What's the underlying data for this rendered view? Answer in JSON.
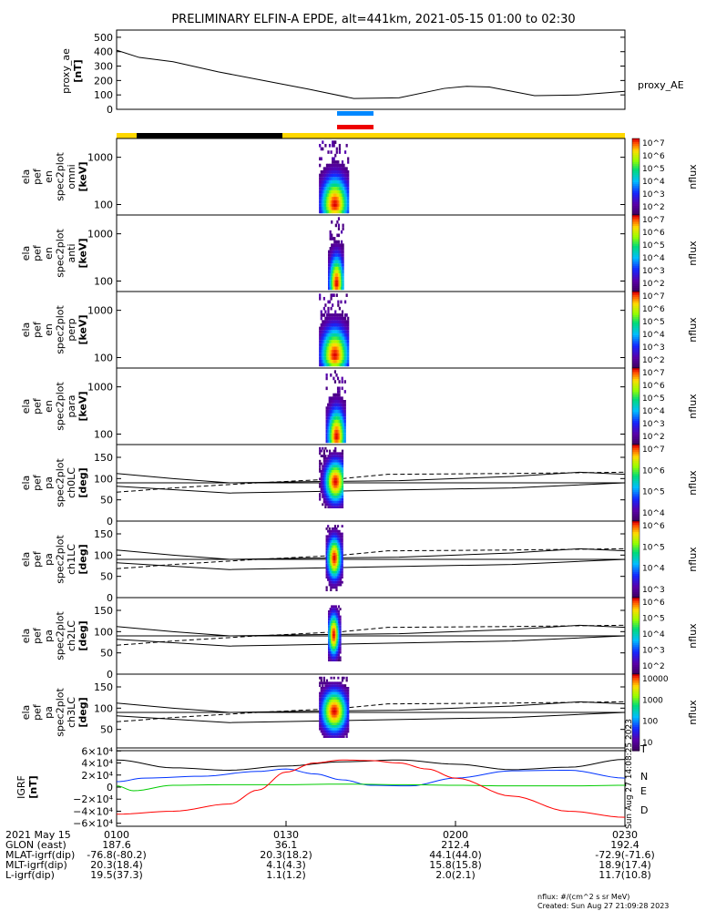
{
  "title": "PRELIMINARY ELFIN-A EPDE, alt=441km, 2021-05-15 01:00 to 02:30",
  "chart_data": [
    {
      "type": "line",
      "id": "proxy_ae",
      "ylabel": [
        "proxy_ae",
        "[nT]"
      ],
      "legend": "proxy_AE",
      "ylim": [
        0,
        550
      ],
      "yticks": [
        "500",
        "400",
        "300",
        "200",
        "100",
        "0"
      ],
      "ytick_values": [
        500,
        400,
        300,
        200,
        100,
        0
      ],
      "x_minutes": [
        0,
        4,
        10,
        18,
        26,
        34,
        42,
        50,
        58,
        62,
        66,
        74,
        82,
        90
      ],
      "values": [
        410,
        360,
        330,
        260,
        200,
        140,
        75,
        80,
        145,
        160,
        155,
        95,
        100,
        125
      ]
    },
    {
      "type": "heatmap",
      "id": "omni",
      "ylabel": [
        "ela",
        "pef",
        "en",
        "spec2plot",
        "omni",
        "[keV]"
      ],
      "yticks": [
        "1000",
        "100"
      ],
      "ytick_values": [
        1000,
        100
      ],
      "ylim_log": [
        60,
        2500
      ],
      "cbar_label": "nflux",
      "cbar_ticks": [
        "10^7",
        "10^6",
        "10^5",
        "10^4",
        "10^3",
        "10^2"
      ],
      "signal": {
        "start_min": 36,
        "end_min": 41,
        "peak_min": 38.7,
        "peak_energy_keV": 90,
        "burst_max_energy_keV": 2000
      }
    },
    {
      "type": "heatmap",
      "id": "anti",
      "ylabel": [
        "ela",
        "pef",
        "en",
        "spec2plot",
        "anti",
        "[keV]"
      ],
      "yticks": [
        "1000",
        "100"
      ],
      "ytick_values": [
        1000,
        100
      ],
      "ylim_log": [
        60,
        2500
      ],
      "cbar_label": "nflux",
      "cbar_ticks": [
        "10^7",
        "10^6",
        "10^5",
        "10^4",
        "10^3",
        "10^2"
      ],
      "signal": {
        "start_min": 37.6,
        "end_min": 40.3,
        "peak_min": 39,
        "peak_energy_keV": 80,
        "burst_max_energy_keV": 2000
      }
    },
    {
      "type": "heatmap",
      "id": "perp",
      "ylabel": [
        "ela",
        "pef",
        "en",
        "spec2plot",
        "perp",
        "[keV]"
      ],
      "yticks": [
        "1000",
        "100"
      ],
      "ytick_values": [
        1000,
        100
      ],
      "ylim_log": [
        60,
        2500
      ],
      "cbar_label": "nflux",
      "cbar_ticks": [
        "10^7",
        "10^6",
        "10^5",
        "10^4",
        "10^3",
        "10^2"
      ],
      "signal": {
        "start_min": 36,
        "end_min": 41,
        "peak_min": 38.7,
        "peak_energy_keV": 100,
        "burst_max_energy_keV": 2000
      }
    },
    {
      "type": "heatmap",
      "id": "para",
      "ylabel": [
        "ela",
        "pef",
        "en",
        "spec2plot",
        "para",
        "[keV]"
      ],
      "yticks": [
        "1000",
        "100"
      ],
      "ytick_values": [
        1000,
        100
      ],
      "ylim_log": [
        60,
        2500
      ],
      "cbar_label": "nflux",
      "cbar_ticks": [
        "10^7",
        "10^6",
        "10^5",
        "10^4",
        "10^3",
        "10^2"
      ],
      "signal": {
        "start_min": 37.2,
        "end_min": 40.5,
        "peak_min": 39,
        "peak_energy_keV": 80,
        "burst_max_energy_keV": 2000
      }
    },
    {
      "type": "heatmap",
      "id": "ch0LC",
      "ylabel": [
        "ela",
        "pef",
        "pa",
        "spec2plot",
        "ch0LC",
        "[deg]"
      ],
      "yticks": [
        "150",
        "100",
        "50",
        "0"
      ],
      "ytick_values": [
        150,
        100,
        50,
        0
      ],
      "ylim": [
        0,
        180
      ],
      "cbar_label": "nflux",
      "cbar_ticks": [
        "10^7",
        "10^6",
        "10^5",
        "10^4"
      ],
      "signal": {
        "start_min": 36,
        "end_min": 40.2,
        "peak_min": 38.8,
        "pa_range": [
          30,
          170
        ]
      }
    },
    {
      "type": "heatmap",
      "id": "ch1LC",
      "ylabel": [
        "ela",
        "pef",
        "pa",
        "spec2plot",
        "ch1LC",
        "[deg]"
      ],
      "yticks": [
        "150",
        "100",
        "50",
        "0"
      ],
      "ytick_values": [
        150,
        100,
        50,
        0
      ],
      "ylim": [
        0,
        180
      ],
      "cbar_label": "nflux",
      "cbar_ticks": [
        "10^6",
        "10^5",
        "10^4",
        "10^3"
      ],
      "signal": {
        "start_min": 37.2,
        "end_min": 40,
        "peak_min": 38.6,
        "pa_range": [
          15,
          170
        ]
      }
    },
    {
      "type": "heatmap",
      "id": "ch2LC",
      "ylabel": [
        "ela",
        "pef",
        "pa",
        "spec2plot",
        "ch2LC",
        "[deg]"
      ],
      "yticks": [
        "150",
        "100",
        "50",
        "0"
      ],
      "ytick_values": [
        150,
        100,
        50,
        0
      ],
      "ylim": [
        0,
        180
      ],
      "cbar_label": "nflux",
      "cbar_ticks": [
        "10^6",
        "10^5",
        "10^4",
        "10^3",
        "10^2"
      ],
      "signal": {
        "start_min": 37.6,
        "end_min": 39.8,
        "peak_min": 38.5,
        "pa_range": [
          30,
          160
        ]
      }
    },
    {
      "type": "heatmap",
      "id": "ch3LC",
      "ylabel": [
        "ela",
        "pef",
        "pa",
        "spec2plot",
        "ch3LC",
        "[deg]"
      ],
      "yticks": [
        "150",
        "100",
        "50"
      ],
      "ytick_values": [
        150,
        100,
        50
      ],
      "ylim": [
        0,
        180
      ],
      "cbar_label": "nflux",
      "cbar_ticks": [
        "10000",
        "1000",
        "100",
        "10"
      ],
      "signal": {
        "start_min": 36,
        "end_min": 41,
        "peak_min": 38.6,
        "pa_range": [
          30,
          170
        ]
      }
    },
    {
      "type": "line",
      "id": "igrf",
      "ylabel": [
        "IGRF",
        "[nT]"
      ],
      "ylim": [
        -65000,
        65000
      ],
      "yticks": [
        "6×10⁴",
        "4×10⁴",
        "2×10⁴",
        "0",
        "−2×10⁴",
        "−4×10⁴",
        "−6×10⁴"
      ],
      "ytick_values": [
        60000,
        40000,
        20000,
        0,
        -20000,
        -40000,
        -60000
      ],
      "series": [
        {
          "name": "T",
          "color": "#000000",
          "x_minutes": [
            0,
            10,
            20,
            30,
            40,
            50,
            60,
            70,
            80,
            90
          ],
          "values": [
            45000,
            32000,
            28000,
            35000,
            42000,
            45000,
            38000,
            29000,
            33000,
            46000
          ]
        },
        {
          "name": "N",
          "color": "#0033ff",
          "x_minutes": [
            0,
            5,
            15,
            25,
            30,
            35,
            40,
            45,
            52,
            60,
            70,
            80,
            90
          ],
          "values": [
            9000,
            15000,
            18000,
            26000,
            30000,
            22000,
            12000,
            3000,
            2000,
            15000,
            27000,
            28000,
            15000
          ]
        },
        {
          "name": "E",
          "color": "#00cc00",
          "x_minutes": [
            0,
            3,
            10,
            20,
            30,
            40,
            50,
            60,
            70,
            80,
            90
          ],
          "values": [
            2000,
            -6000,
            3000,
            4000,
            4000,
            5000,
            4000,
            3000,
            2000,
            2000,
            3000
          ]
        },
        {
          "name": "D",
          "color": "#ff0000",
          "x_minutes": [
            0,
            10,
            20,
            25,
            30,
            35,
            40,
            45,
            50,
            55,
            60,
            70,
            80,
            90
          ],
          "values": [
            -45000,
            -40000,
            -28000,
            -5000,
            25000,
            40000,
            45000,
            44000,
            40000,
            30000,
            15000,
            -15000,
            -40000,
            -50000
          ]
        }
      ],
      "side_legend": [
        "T",
        "N",
        "E",
        "D"
      ]
    }
  ],
  "xaxis": {
    "row_labels": [
      "2021 May 15",
      "GLON (east)",
      "MLAT-igrf(dip)",
      "MLT-igrf(dip)",
      "L-igrf(dip)"
    ],
    "columns": [
      {
        "time": "0100",
        "glon": "187.6",
        "mlat": "-76.8(-80.2)",
        "mlt": "20.3(18.4)",
        "l": "19.5(37.3)"
      },
      {
        "time": "0130",
        "glon": "36.1",
        "mlat": "20.3(18.2)",
        "mlt": "4.1(4.3)",
        "l": "1.1(1.2)"
      },
      {
        "time": "0200",
        "glon": "212.4",
        "mlat": "44.1(44.0)",
        "mlt": "15.8(15.8)",
        "l": "2.0(2.1)"
      },
      {
        "time": "0230",
        "glon": "192.4",
        "mlat": "-72.9(-71.6)",
        "mlt": "18.9(17.4)",
        "l": "11.7(10.8)"
      }
    ]
  },
  "footer": {
    "nflux": "nflux: #/(cm^2 s sr MeV)",
    "created": "Created: Sun Aug 27 21:09:28 2023",
    "side_stamp": "Sun Aug 27 14:08:25 2023"
  },
  "colors": {
    "sunlight": "#ffd700",
    "eclipse": "#000000",
    "bar_blue": "#0088ff",
    "bar_red": "#ee0000"
  }
}
